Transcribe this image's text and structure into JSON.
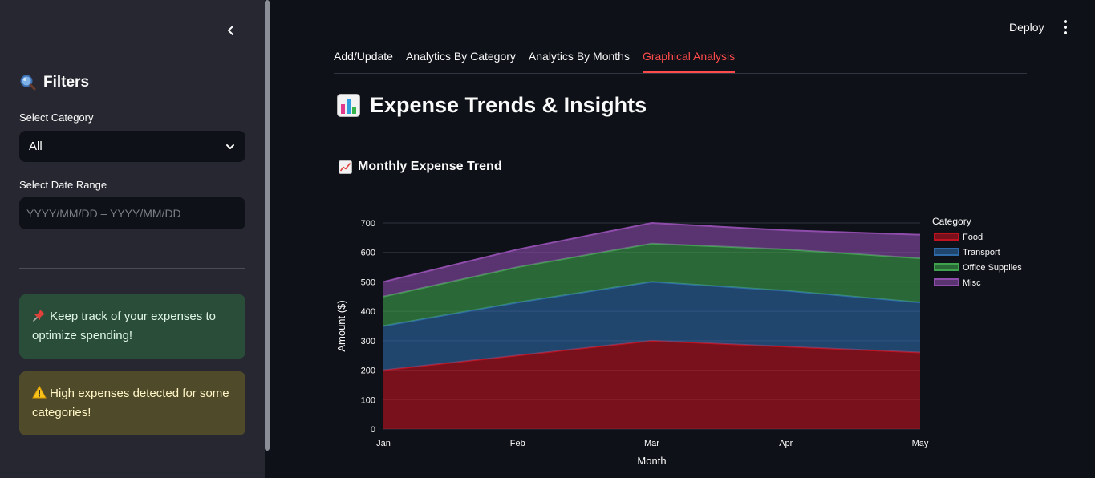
{
  "sidebar": {
    "collapse_icon": "chevron-left-icon",
    "filters_icon": "magnifying-glass-icon",
    "filters_title": "Filters",
    "category_label": "Select Category",
    "category_value": "All",
    "date_label": "Select Date Range",
    "date_placeholder": "YYYY/MM/DD – YYYY/MM/DD",
    "success_icon": "pushpin-icon",
    "success_text": "Keep track of your expenses to optimize spending!",
    "warning_icon": "warning-icon",
    "warning_text": "High expenses detected for some categories!"
  },
  "header": {
    "deploy_label": "Deploy",
    "menu_icon": "vertical-ellipsis-icon"
  },
  "tabs": [
    {
      "label": "Add/Update",
      "active": false
    },
    {
      "label": "Analytics By Category",
      "active": false
    },
    {
      "label": "Analytics By Months",
      "active": false
    },
    {
      "label": "Graphical Analysis",
      "active": true
    }
  ],
  "main": {
    "title_icon": "bar-chart-icon",
    "title": "Expense Trends & Insights",
    "chart_icon": "chart-increasing-icon",
    "chart_heading": "Monthly Expense Trend"
  },
  "colors": {
    "accent": "#ff4b4b",
    "Food": "#c1121f",
    "Transport": "#2f6aa8",
    "Office Supplies": "#3fa34d",
    "Misc": "#8e4cab"
  },
  "chart_data": {
    "type": "area",
    "stacked": true,
    "categories": [
      "Jan",
      "Feb",
      "Mar",
      "Apr",
      "May"
    ],
    "series": [
      {
        "name": "Food",
        "values": [
          200,
          250,
          300,
          280,
          260
        ]
      },
      {
        "name": "Transport",
        "values": [
          150,
          180,
          200,
          190,
          170
        ]
      },
      {
        "name": "Office Supplies",
        "values": [
          100,
          120,
          130,
          140,
          150
        ]
      },
      {
        "name": "Misc",
        "values": [
          50,
          60,
          70,
          65,
          80
        ]
      }
    ],
    "xlabel": "Month",
    "ylabel": "Amount ($)",
    "legend_title": "Category",
    "legend_position": "right",
    "ylim": [
      0,
      700
    ],
    "yticks": [
      0,
      100,
      200,
      300,
      400,
      500,
      600,
      700
    ],
    "grid": true
  }
}
